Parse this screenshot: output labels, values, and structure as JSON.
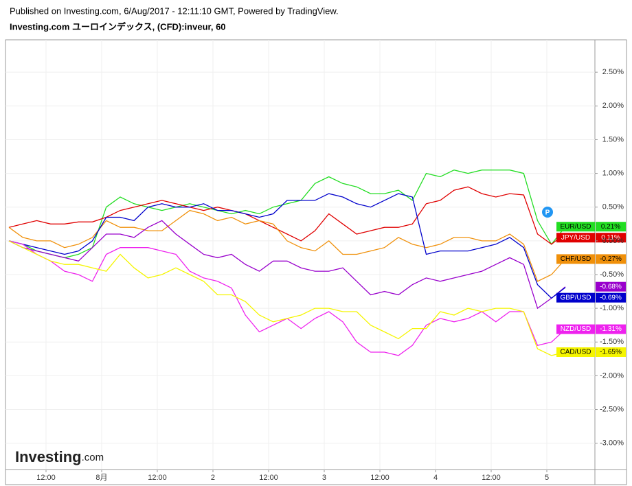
{
  "chart_data": {
    "type": "line",
    "subtitle": "Published on Investing.com, 6/Aug/2017 - 12:11:10 GMT, Powered by TradingView.",
    "title": "Investing.com ユーロインデックス, (CFD):inveur, 60",
    "watermark": {
      "main": "Investing",
      "suffix": ".com"
    },
    "grid": true,
    "x": [
      4,
      7,
      10,
      13,
      16,
      19,
      22,
      25,
      28,
      31,
      34,
      37,
      40,
      43,
      46,
      49,
      52,
      55,
      58,
      61,
      64,
      67,
      70,
      73,
      76,
      79,
      82,
      85,
      88,
      91,
      94,
      97,
      100,
      103,
      106,
      109,
      112,
      115,
      118,
      121,
      124
    ],
    "xlim": [
      3.26,
      130.37
    ],
    "xticks": [
      {
        "value": 12,
        "label": "12:00"
      },
      {
        "value": 24,
        "label": "8月"
      },
      {
        "value": 36,
        "label": "12:00"
      },
      {
        "value": 48,
        "label": "2"
      },
      {
        "value": 60,
        "label": "12:00"
      },
      {
        "value": 72,
        "label": "3"
      },
      {
        "value": 84,
        "label": "12:00"
      },
      {
        "value": 96,
        "label": "4"
      },
      {
        "value": 108,
        "label": "12:00"
      },
      {
        "value": 120,
        "label": "5"
      }
    ],
    "ylim": [
      -3.39,
      2.98
    ],
    "yticks": [
      {
        "value": 2.5,
        "label": "2.50%"
      },
      {
        "value": 2,
        "label": "2.00%"
      },
      {
        "value": 1.5,
        "label": "1.50%"
      },
      {
        "value": 1,
        "label": "1.00%"
      },
      {
        "value": 0.5,
        "label": "0.50%"
      },
      {
        "value": 0,
        "label": "0.00%"
      },
      {
        "value": -0.5,
        "label": "-0.50%"
      },
      {
        "value": -1,
        "label": "-1.00%"
      },
      {
        "value": -1.5,
        "label": "-1.50%"
      },
      {
        "value": -2,
        "label": "-2.00%"
      },
      {
        "value": -2.5,
        "label": "-2.50%"
      },
      {
        "value": -3,
        "label": "-3.00%"
      }
    ],
    "series": [
      {
        "name": "EUR/USD",
        "color": "#22dd22",
        "last_label": "0.21%",
        "values": [
          0,
          -0.05,
          -0.15,
          -0.2,
          -0.25,
          -0.2,
          -0.1,
          0.5,
          0.65,
          0.55,
          0.5,
          0.45,
          0.5,
          0.55,
          0.5,
          0.45,
          0.4,
          0.45,
          0.4,
          0.5,
          0.55,
          0.6,
          0.85,
          0.95,
          0.85,
          0.8,
          0.7,
          0.7,
          0.75,
          0.6,
          1.0,
          0.95,
          1.05,
          1.0,
          1.05,
          1.05,
          1.05,
          1.0,
          0.3,
          -0.05,
          0.21
        ]
      },
      {
        "name": "JPY/USD",
        "color": "#e00000",
        "last_label": "0.11%",
        "values": [
          0.2,
          0.25,
          0.3,
          0.25,
          0.25,
          0.28,
          0.28,
          0.35,
          0.45,
          0.5,
          0.55,
          0.6,
          0.55,
          0.5,
          0.45,
          0.5,
          0.45,
          0.4,
          0.3,
          0.2,
          0.1,
          0.0,
          0.15,
          0.4,
          0.25,
          0.1,
          0.15,
          0.2,
          0.2,
          0.25,
          0.55,
          0.6,
          0.75,
          0.8,
          0.7,
          0.65,
          0.7,
          0.68,
          0.1,
          -0.05,
          0.11
        ]
      },
      {
        "name": "CHF/USD",
        "color": "#f0900a",
        "last_label": "-0.27%",
        "values": [
          0.2,
          0.05,
          0.0,
          0.0,
          -0.1,
          -0.05,
          0.05,
          0.3,
          0.2,
          0.2,
          0.15,
          0.15,
          0.3,
          0.45,
          0.4,
          0.3,
          0.35,
          0.25,
          0.3,
          0.25,
          0.0,
          -0.1,
          -0.15,
          0.0,
          -0.2,
          -0.2,
          -0.15,
          -0.1,
          0.05,
          -0.05,
          -0.1,
          -0.05,
          0.05,
          0.05,
          0.0,
          0.0,
          0.1,
          -0.05,
          -0.6,
          -0.5,
          -0.27
        ]
      },
      {
        "color": "#9900cc",
        "last_label": "-0.68%",
        "values": [
          0,
          -0.1,
          -0.15,
          -0.2,
          -0.25,
          -0.3,
          -0.1,
          0.1,
          0.1,
          0.05,
          0.2,
          0.3,
          0.1,
          -0.05,
          -0.2,
          -0.25,
          -0.2,
          -0.35,
          -0.45,
          -0.3,
          -0.3,
          -0.4,
          -0.45,
          -0.45,
          -0.4,
          -0.6,
          -0.8,
          -0.75,
          -0.8,
          -0.65,
          -0.55,
          -0.6,
          -0.55,
          -0.5,
          -0.45,
          -0.35,
          -0.25,
          -0.35,
          -1.0,
          -0.85,
          -0.68
        ]
      },
      {
        "name": "GBP/USD",
        "color": "#0000cc",
        "last_label": "-0.69%",
        "values": [
          0,
          -0.05,
          -0.1,
          -0.15,
          -0.2,
          -0.15,
          0.0,
          0.35,
          0.35,
          0.3,
          0.5,
          0.55,
          0.5,
          0.5,
          0.55,
          0.45,
          0.45,
          0.4,
          0.35,
          0.4,
          0.6,
          0.6,
          0.6,
          0.7,
          0.65,
          0.55,
          0.5,
          0.6,
          0.7,
          0.65,
          -0.2,
          -0.15,
          -0.15,
          -0.15,
          -0.1,
          -0.05,
          0.05,
          -0.1,
          -0.65,
          -0.85,
          -0.69
        ]
      },
      {
        "name": "NZD/USD",
        "color": "#ee22ee",
        "last_label": "-1.31%",
        "values": [
          0,
          -0.05,
          -0.2,
          -0.3,
          -0.45,
          -0.5,
          -0.6,
          -0.2,
          -0.1,
          -0.1,
          -0.1,
          -0.15,
          -0.2,
          -0.45,
          -0.55,
          -0.6,
          -0.7,
          -1.1,
          -1.35,
          -1.25,
          -1.15,
          -1.3,
          -1.15,
          -1.05,
          -1.2,
          -1.5,
          -1.65,
          -1.65,
          -1.7,
          -1.55,
          -1.25,
          -1.15,
          -1.2,
          -1.15,
          -1.05,
          -1.2,
          -1.05,
          -1.05,
          -1.55,
          -1.5,
          -1.31
        ]
      },
      {
        "name": "CAD/USD",
        "color": "#f5f500",
        "last_label": "-1.65%",
        "values": [
          0.0,
          -0.1,
          -0.2,
          -0.3,
          -0.35,
          -0.35,
          -0.4,
          -0.45,
          -0.2,
          -0.4,
          -0.55,
          -0.5,
          -0.4,
          -0.5,
          -0.6,
          -0.8,
          -0.8,
          -0.9,
          -1.1,
          -1.2,
          -1.15,
          -1.1,
          -1.0,
          -1.0,
          -1.05,
          -1.05,
          -1.25,
          -1.35,
          -1.45,
          -1.3,
          -1.3,
          -1.05,
          -1.1,
          -1.0,
          -1.05,
          -1.0,
          -1.0,
          -1.05,
          -1.6,
          -1.7,
          -1.65
        ]
      }
    ]
  }
}
